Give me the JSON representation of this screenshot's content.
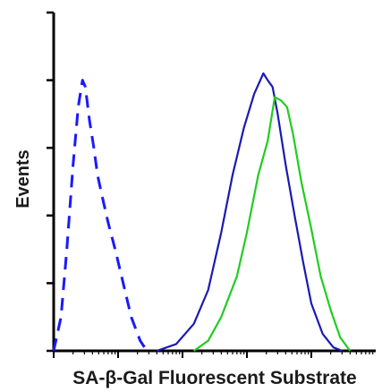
{
  "chart_data": {
    "type": "line",
    "title": "",
    "xlabel": "SA-β-Gal Fluorescent Substrate",
    "ylabel": "Events",
    "x_scale": "log",
    "xlim": [
      1,
      100000
    ],
    "ylim": [
      0,
      100
    ],
    "series": [
      {
        "color": "#1a1aff",
        "line_style": "dashed",
        "points": [
          [
            1.0,
            0
          ],
          [
            1.3,
            10
          ],
          [
            1.6,
            30
          ],
          [
            2.0,
            55
          ],
          [
            2.4,
            72
          ],
          [
            2.8,
            80
          ],
          [
            3.1,
            78
          ],
          [
            3.6,
            68
          ],
          [
            4.2,
            60
          ],
          [
            4.8,
            52
          ],
          [
            5.6,
            46
          ],
          [
            7,
            38
          ],
          [
            9,
            30
          ],
          [
            12,
            20
          ],
          [
            16,
            10
          ],
          [
            22,
            3
          ],
          [
            28,
            0
          ]
        ]
      },
      {
        "color": "#1a1ab4",
        "line_style": "solid",
        "points": [
          [
            40,
            0
          ],
          [
            80,
            2
          ],
          [
            150,
            8
          ],
          [
            250,
            18
          ],
          [
            400,
            35
          ],
          [
            600,
            52
          ],
          [
            900,
            66
          ],
          [
            1300,
            76
          ],
          [
            1800,
            82
          ],
          [
            2100,
            80
          ],
          [
            2500,
            78
          ],
          [
            3000,
            70
          ],
          [
            4000,
            55
          ],
          [
            5500,
            40
          ],
          [
            7500,
            26
          ],
          [
            10000,
            14
          ],
          [
            15000,
            5
          ],
          [
            22000,
            1
          ],
          [
            30000,
            0
          ]
        ]
      },
      {
        "color": "#22cc22",
        "line_style": "solid",
        "points": [
          [
            150,
            0
          ],
          [
            250,
            3
          ],
          [
            400,
            10
          ],
          [
            700,
            22
          ],
          [
            1000,
            35
          ],
          [
            1500,
            52
          ],
          [
            2100,
            62
          ],
          [
            2700,
            75
          ],
          [
            3400,
            74
          ],
          [
            4200,
            72
          ],
          [
            5200,
            64
          ],
          [
            7000,
            50
          ],
          [
            10000,
            36
          ],
          [
            14000,
            22
          ],
          [
            20000,
            12
          ],
          [
            28000,
            4
          ],
          [
            40000,
            0
          ]
        ]
      }
    ]
  }
}
